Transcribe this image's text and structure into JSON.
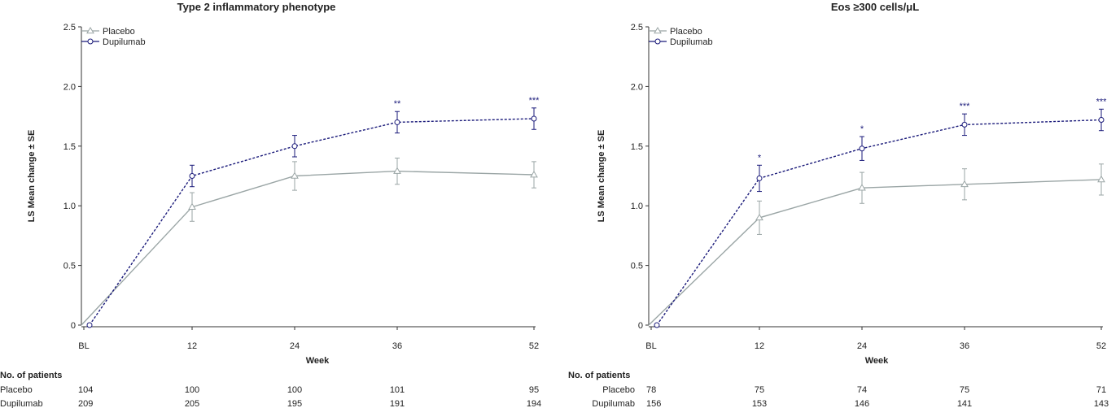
{
  "chart_data": [
    {
      "type": "line",
      "title": "Type 2 inflammatory phenotype",
      "xlabel": "Week",
      "ylabel": "LS Mean change ± SE",
      "categories": [
        "BL",
        "12",
        "24",
        "36",
        "52"
      ],
      "x": [
        0,
        12,
        24,
        36,
        52
      ],
      "ylim": [
        0,
        2.5
      ],
      "yticks": [
        "0",
        "0.5",
        "1.0",
        "1.5",
        "2.0",
        "2.5"
      ],
      "legend_position": "top-left",
      "series": [
        {
          "name": "Placebo",
          "color": "#9aa5a5",
          "marker": "triangle",
          "style": "solid",
          "values": [
            0,
            0.99,
            1.25,
            1.29,
            1.26
          ],
          "se": [
            0,
            0.12,
            0.12,
            0.11,
            0.11
          ],
          "significance": [
            "",
            "",
            "",
            "",
            ""
          ]
        },
        {
          "name": "Dupilumab",
          "color": "#1a1a7a",
          "marker": "circle",
          "style": "dashed",
          "values": [
            0,
            1.25,
            1.5,
            1.7,
            1.73
          ],
          "se": [
            0,
            0.09,
            0.09,
            0.09,
            0.09
          ],
          "significance": [
            "",
            "",
            "",
            "**",
            "***"
          ]
        }
      ],
      "patients": {
        "label": "No. of patients",
        "rows": [
          {
            "name": "Placebo",
            "values": [
              "104",
              "100",
              "100",
              "101",
              "95"
            ]
          },
          {
            "name": "Dupilumab",
            "values": [
              "209",
              "205",
              "195",
              "191",
              "194"
            ]
          }
        ]
      }
    },
    {
      "type": "line",
      "title": "Eos ≥300 cells/μL",
      "xlabel": "Week",
      "ylabel": "LS Mean change ± SE",
      "categories": [
        "BL",
        "12",
        "24",
        "36",
        "52"
      ],
      "x": [
        0,
        12,
        24,
        36,
        52
      ],
      "ylim": [
        0,
        2.5
      ],
      "yticks": [
        "0",
        "0.5",
        "1.0",
        "1.5",
        "2.0",
        "2.5"
      ],
      "legend_position": "top-left",
      "series": [
        {
          "name": "Placebo",
          "color": "#9aa5a5",
          "marker": "triangle",
          "style": "solid",
          "values": [
            0,
            0.9,
            1.15,
            1.18,
            1.22
          ],
          "se": [
            0,
            0.14,
            0.13,
            0.13,
            0.13
          ],
          "significance": [
            "",
            "",
            "",
            "",
            ""
          ]
        },
        {
          "name": "Dupilumab",
          "color": "#1a1a7a",
          "marker": "circle",
          "style": "dashed",
          "values": [
            0,
            1.23,
            1.48,
            1.68,
            1.72
          ],
          "se": [
            0,
            0.11,
            0.1,
            0.09,
            0.09
          ],
          "significance": [
            "",
            "*",
            "*",
            "***",
            "***"
          ]
        }
      ],
      "patients": {
        "label": "No. of patients",
        "rows": [
          {
            "name": "Placebo",
            "values": [
              "78",
              "75",
              "74",
              "75",
              "71"
            ]
          },
          {
            "name": "Dupilumab",
            "values": [
              "156",
              "153",
              "146",
              "141",
              "143"
            ]
          }
        ]
      }
    }
  ]
}
